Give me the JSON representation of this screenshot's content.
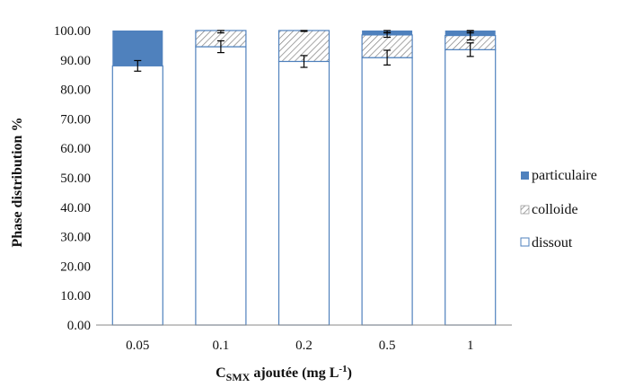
{
  "chart_data": {
    "type": "bar",
    "stacked": true,
    "categories": [
      "0.05",
      "0.1",
      "0.2",
      "0.5",
      "1"
    ],
    "series": [
      {
        "name": "dissout",
        "values": [
          88.0,
          94.5,
          89.5,
          90.8,
          93.5
        ],
        "errors": [
          1.8,
          2.0,
          2.0,
          2.5,
          2.3
        ],
        "fill": "#ffffff",
        "pattern": "none"
      },
      {
        "name": "colloide",
        "values": [
          0.0,
          5.5,
          10.5,
          7.7,
          4.8
        ],
        "errors": [
          0,
          0.8,
          0.3,
          0.8,
          1.5
        ],
        "fill": "#ffffff",
        "pattern": "hatch"
      },
      {
        "name": "particulaire",
        "values": [
          12.0,
          0.0,
          0.0,
          1.5,
          1.7
        ],
        "errors": [
          0,
          0,
          0,
          0.8,
          0.8
        ],
        "fill": "#4f81bd",
        "pattern": "solid"
      }
    ],
    "yticks": [
      "0.00",
      "10.00",
      "20.00",
      "30.00",
      "40.00",
      "50.00",
      "60.00",
      "70.00",
      "80.00",
      "90.00",
      "100.00"
    ],
    "ylim": [
      0,
      100
    ],
    "ylabel": "Phase distribution %",
    "xlabel_main": "C",
    "xlabel_sub": "SMX",
    "xlabel_rest": " ajoutée (mg L",
    "xlabel_sup": "-1",
    "xlabel_end": ")",
    "legend_position": "right",
    "grid": false,
    "colors": {
      "accent": "#4f81bd",
      "bar_outline": "#4f81bd",
      "hatch": "#7f7f7f",
      "axis": "#888888"
    }
  }
}
